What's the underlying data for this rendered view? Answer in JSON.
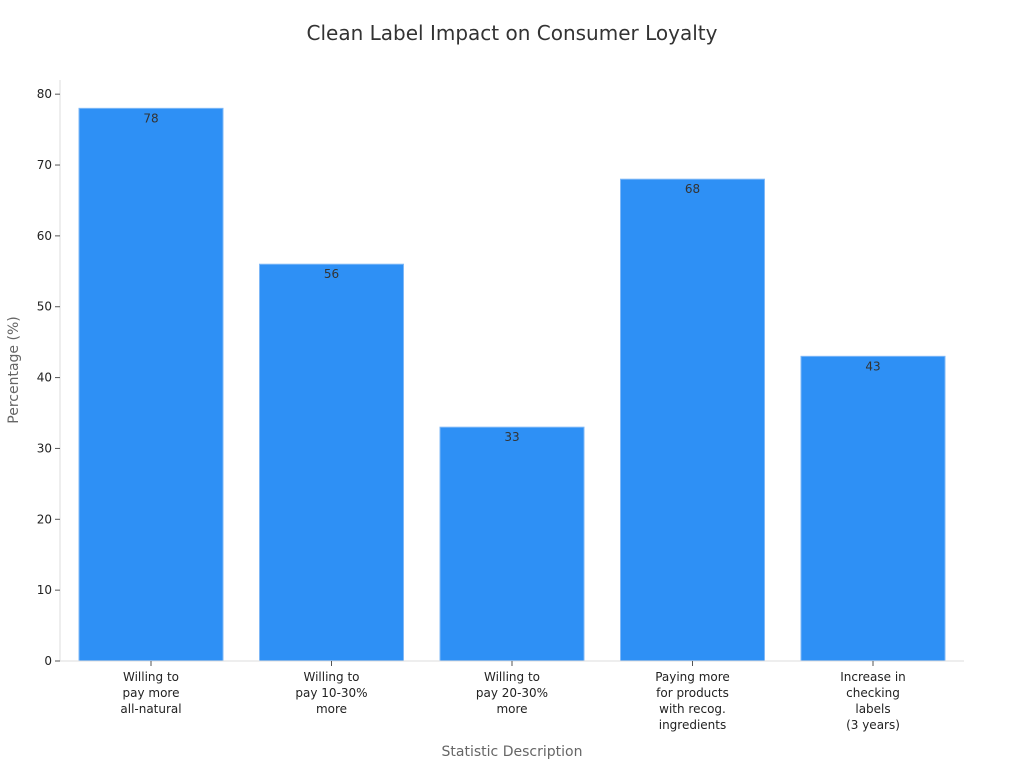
{
  "chart_data": {
    "type": "bar",
    "title": "Clean Label Impact on Consumer Loyalty",
    "xlabel": "Statistic Description",
    "ylabel": "Percentage (%)",
    "ylim": [
      0,
      82
    ],
    "yticks": [
      0,
      10,
      20,
      30,
      40,
      50,
      60,
      70,
      80
    ],
    "grid": false,
    "bar_color": "#2e90f5",
    "categories": [
      [
        "Willing to",
        "pay more",
        "all-natural"
      ],
      [
        "Willing to",
        "pay 10-30%",
        "more"
      ],
      [
        "Willing to",
        "pay 20-30%",
        "more"
      ],
      [
        "Paying more",
        "for products",
        "with recog.",
        "ingredients"
      ],
      [
        "Increase in",
        "checking",
        "labels",
        "(3 years)"
      ]
    ],
    "values": [
      78,
      56,
      33,
      68,
      43
    ]
  }
}
